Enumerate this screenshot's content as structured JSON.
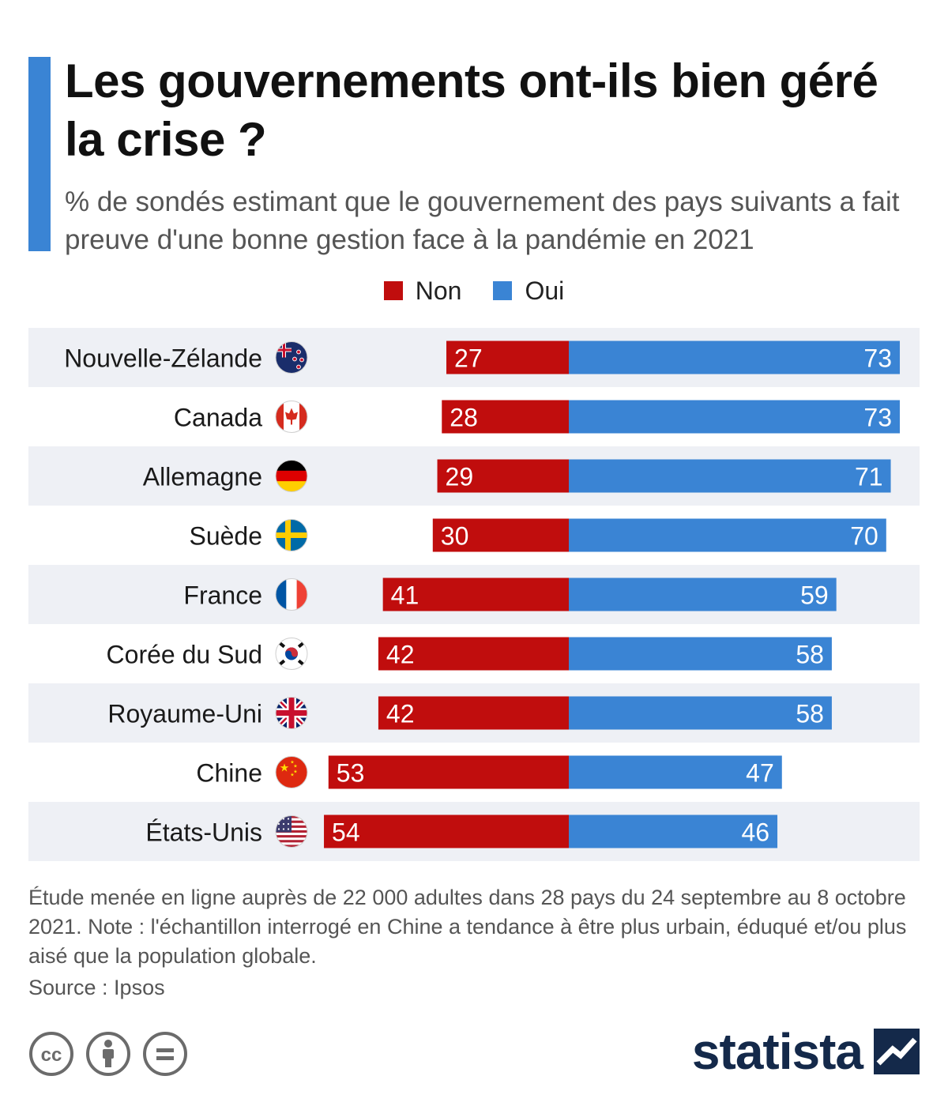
{
  "title": "Les gouvernements ont-ils bien géré la crise ?",
  "subtitle": "% de sondés estimant que le gouvernement des pays suivants a fait preuve d'une bonne gestion face à la pandémie en 2021",
  "legend": {
    "non": "Non",
    "oui": "Oui"
  },
  "colors": {
    "non": "#c00d0d",
    "oui": "#3a84d4",
    "accent": "#3a84d4",
    "row_stripe": "#eef0f5",
    "brand": "#14294a"
  },
  "chart_data": {
    "type": "bar",
    "orientation": "horizontal-diverging",
    "categories": [
      "Nouvelle-Zélande",
      "Canada",
      "Allemagne",
      "Suède",
      "France",
      "Corée du Sud",
      "Royaume-Uni",
      "Chine",
      "États-Unis"
    ],
    "flags": [
      "new-zealand-flag-icon",
      "canada-flag-icon",
      "germany-flag-icon",
      "sweden-flag-icon",
      "france-flag-icon",
      "south-korea-flag-icon",
      "uk-flag-icon",
      "china-flag-icon",
      "usa-flag-icon"
    ],
    "series": [
      {
        "name": "Non",
        "values": [
          27,
          28,
          29,
          30,
          41,
          42,
          42,
          53,
          54
        ]
      },
      {
        "name": "Oui",
        "values": [
          73,
          73,
          71,
          70,
          59,
          58,
          58,
          47,
          46
        ]
      }
    ],
    "legend_position": "top-center"
  },
  "footnote": "Étude menée en ligne auprès de 22 000 adultes dans 28 pays du 24 septembre au 8 octobre 2021. Note : l'échantillon interrogé en Chine a tendance à être plus urbain, éduqué et/ou plus aisé que la population globale.",
  "source": "Source : Ipsos",
  "brand": "statista"
}
